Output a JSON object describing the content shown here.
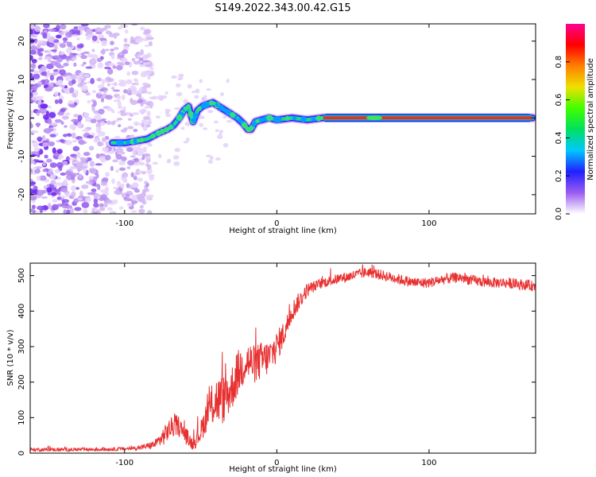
{
  "title": "S149.2022.343.00.42.G15",
  "chart_data": [
    {
      "type": "heatmap",
      "xlabel": "Height of straight line (km)",
      "ylabel": "Frequency (Hz)",
      "xlim": [
        -162,
        170
      ],
      "ylim": [
        -25,
        24.5
      ],
      "x_ticks": [
        -100,
        0,
        100
      ],
      "y_ticks": [
        -20,
        -10,
        0,
        10,
        20
      ],
      "colorbar": {
        "label": "Normalized spectral amplitude",
        "range": [
          0,
          1
        ],
        "ticks": [
          0.0,
          0.2,
          0.4,
          0.6,
          0.8
        ],
        "colors": [
          "#ffffff",
          "#9a5cf0",
          "#2020ff",
          "#00c8ff",
          "#00e060",
          "#40ff00",
          "#f0e000",
          "#ff8000",
          "#ff0000",
          "#ff0090"
        ]
      },
      "ridge": {
        "x": [
          -108,
          -100,
          -92,
          -85,
          -78,
          -72,
          -68,
          -64,
          -61,
          -58,
          -55,
          -52,
          -49,
          -46,
          -42,
          -38,
          -34,
          -30,
          -26,
          -22,
          -19,
          -17,
          -14,
          -10,
          -5,
          0,
          10,
          20,
          30,
          60,
          100,
          168
        ],
        "y": [
          -6.5,
          -6.5,
          -6,
          -5.5,
          -4,
          -3,
          -2,
          0,
          2,
          3,
          -1,
          2,
          3,
          3.5,
          4,
          3,
          2,
          1,
          0,
          -1.5,
          -3,
          -3,
          -1,
          -0.5,
          0,
          -0.5,
          0,
          -0.5,
          0,
          0,
          0,
          0
        ]
      }
    },
    {
      "type": "line",
      "xlabel": "Height of straight line (km)",
      "ylabel": "SNR (10 * v/v)",
      "xlim": [
        -162,
        170
      ],
      "ylim": [
        0,
        535
      ],
      "x_ticks": [
        -100,
        0,
        100
      ],
      "y_ticks": [
        0,
        100,
        200,
        300,
        400,
        500
      ],
      "series": [
        {
          "color": "#e83030",
          "envelope": {
            "x": [
              -162,
              -120,
              -100,
              -90,
              -80,
              -75,
              -70,
              -65,
              -60,
              -55,
              -50,
              -45,
              -40,
              -35,
              -30,
              -25,
              -20,
              -15,
              -10,
              -5,
              0,
              5,
              10,
              15,
              20,
              25,
              30,
              40,
              50,
              60,
              70,
              80,
              90,
              100,
              110,
              120,
              130,
              140,
              150,
              160,
              170
            ],
            "y": [
              10,
              10,
              12,
              15,
              25,
              45,
              70,
              80,
              50,
              25,
              60,
              120,
              150,
              150,
              180,
              230,
              260,
              250,
              260,
              270,
              300,
              340,
              400,
              430,
              460,
              470,
              480,
              490,
              500,
              510,
              500,
              490,
              480,
              480,
              490,
              495,
              485,
              480,
              480,
              475,
              470
            ],
            "noise": [
              5,
              5,
              5,
              6,
              12,
              25,
              30,
              30,
              25,
              18,
              30,
              50,
              70,
              70,
              65,
              65,
              60,
              55,
              55,
              50,
              45,
              35,
              30,
              25,
              20,
              15,
              15,
              15,
              15,
              15,
              15,
              15,
              15,
              15,
              15,
              15,
              15,
              15,
              15,
              15,
              15
            ]
          }
        }
      ]
    }
  ]
}
